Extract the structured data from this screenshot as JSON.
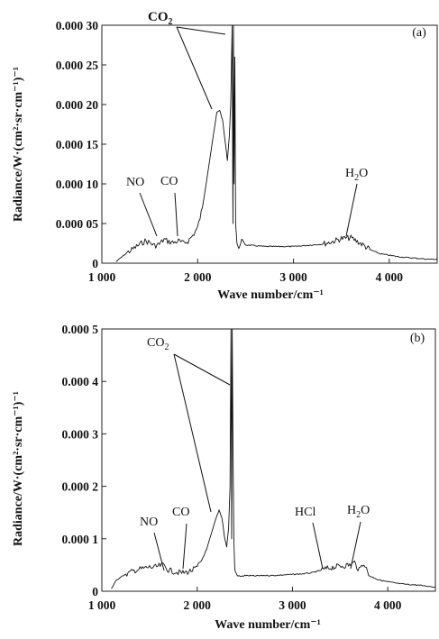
{
  "chart_data": [
    {
      "type": "line",
      "panel_label": "(a)",
      "xlabel": "Wave number/cm⁻¹",
      "ylabel": "Radiance/W·(cm²·sr·cm⁻¹)⁻¹",
      "xlim": [
        1000,
        4500
      ],
      "ylim": [
        0,
        0.0003
      ],
      "x_ticks": [
        1000,
        2000,
        3000,
        4000
      ],
      "x_tick_labels": [
        "1 000",
        "2 000",
        "3 000",
        "4 000"
      ],
      "y_ticks": [
        0,
        5e-05,
        0.0001,
        0.00015,
        0.0002,
        0.00025,
        0.0003
      ],
      "y_tick_labels": [
        "0",
        "0.000 05",
        "0.000 10",
        "0.000 15",
        "0.000 20",
        "0.000 25",
        "0.000 30"
      ],
      "grid": false,
      "series": [
        {
          "x": [
            1150,
            1200,
            1250,
            1300,
            1350,
            1400,
            1450,
            1500,
            1550,
            1600,
            1650,
            1700,
            1750,
            1800,
            1850,
            1900,
            1950,
            2000,
            2050,
            2100,
            2150,
            2200,
            2230,
            2260,
            2290,
            2310,
            2330,
            2345,
            2360,
            2368,
            2374,
            2380,
            2388,
            2396,
            2410,
            2430,
            2460,
            2500,
            2600,
            2700,
            2800,
            2900,
            3000,
            3100,
            3200,
            3300,
            3400,
            3500,
            3600,
            3700,
            3800,
            3900,
            4000,
            4100,
            4200,
            4300,
            4400,
            4500
          ],
          "y": [
            2e-06,
            7e-06,
            1.2e-05,
            1.6e-05,
            2e-05,
            2.4e-05,
            2.8e-05,
            2.6e-05,
            2.2e-05,
            2.4e-05,
            3e-05,
            2.7e-05,
            2.6e-05,
            2.8e-05,
            2.5e-05,
            2.8e-05,
            3.5e-05,
            4.5e-05,
            7e-05,
            0.00011,
            0.00015,
            0.00019,
            0.000193,
            0.00018,
            0.00015,
            0.00013,
            0.00016,
            0.0002,
            0.0003,
            5e-05,
            0.0003,
            0.0001,
            0.00026,
            5e-05,
            2.5e-05,
            1.8e-05,
            3e-05,
            2.3e-05,
            2.2e-05,
            2.1e-05,
            2.1e-05,
            2.1e-05,
            2.1e-05,
            2.2e-05,
            2.3e-05,
            2.4e-05,
            2.7e-05,
            3.1e-05,
            3.2e-05,
            2.5e-05,
            1.7e-05,
            1.2e-05,
            1e-05,
            8e-06,
            7e-06,
            6e-06,
            5e-06,
            5e-06
          ]
        }
      ],
      "annotations": [
        {
          "text": "CO",
          "sub": "2",
          "points_to": [
            [
              2230,
              0.000193
            ],
            [
              2370,
              0.000296
            ]
          ]
        },
        {
          "text": "NO",
          "sub": "",
          "points_to": [
            [
              1620,
              2.8e-05
            ]
          ]
        },
        {
          "text": "CO",
          "sub": "",
          "points_to": [
            [
              1820,
              2.6e-05
            ]
          ]
        },
        {
          "text": "H",
          "sub": "2",
          "tail": "O",
          "points_to": [
            [
              3600,
              3.2e-05
            ]
          ]
        }
      ]
    },
    {
      "type": "line",
      "panel_label": "(b)",
      "xlabel": "Wave number/cm⁻¹",
      "ylabel": "Radiance/W·(cm²·sr·cm⁻¹)⁻¹",
      "xlim": [
        1000,
        4500
      ],
      "ylim": [
        0,
        0.0005
      ],
      "x_ticks": [
        1000,
        2000,
        3000,
        4000
      ],
      "x_tick_labels": [
        "1 000",
        "2 000",
        "3 000",
        "4 000"
      ],
      "y_ticks": [
        0,
        0.0001,
        0.0002,
        0.0003,
        0.0004,
        0.0005
      ],
      "y_tick_labels": [
        "0",
        "0.000 1",
        "0.000 2",
        "0.000 3",
        "0.000 4",
        "0.000 5"
      ],
      "grid": false,
      "series": [
        {
          "x": [
            1100,
            1150,
            1200,
            1250,
            1300,
            1350,
            1400,
            1450,
            1500,
            1550,
            1600,
            1650,
            1700,
            1750,
            1800,
            1850,
            1900,
            1950,
            2000,
            2050,
            2100,
            2150,
            2200,
            2230,
            2260,
            2290,
            2310,
            2330,
            2345,
            2355,
            2362,
            2368,
            2375,
            2385,
            2395,
            2420,
            2460,
            2500,
            2600,
            2700,
            2800,
            2900,
            3000,
            3100,
            3200,
            3300,
            3400,
            3500,
            3600,
            3650,
            3700,
            3750,
            3800,
            3900,
            4000,
            4100,
            4200,
            4300,
            4400,
            4500
          ],
          "y": [
            5e-06,
            2e-05,
            2.8e-05,
            3.2e-05,
            3.6e-05,
            4e-05,
            4.2e-05,
            4.4e-05,
            4.6e-05,
            4.5e-05,
            4.8e-05,
            5e-05,
            4e-05,
            3.8e-05,
            3.6e-05,
            3.5e-05,
            3.7e-05,
            4e-05,
            4.5e-05,
            6e-05,
            8e-05,
            0.00011,
            0.00014,
            0.000155,
            0.00014,
            0.0001,
            8.5e-05,
            0.00012,
            0.0002,
            0.0005,
            0.0001,
            0.0005,
            0.0003,
            0.0001,
            4e-05,
            3e-05,
            2.8e-05,
            3e-05,
            2.9e-05,
            3e-05,
            3e-05,
            3.1e-05,
            3.2e-05,
            3.3e-05,
            3.5e-05,
            4e-05,
            4.5e-05,
            4.8e-05,
            5e-05,
            5.5e-05,
            4e-05,
            5.5e-05,
            3e-05,
            2.2e-05,
            1.8e-05,
            1.5e-05,
            1.3e-05,
            1.2e-05,
            1e-05,
            8e-06
          ]
        }
      ],
      "annotations": [
        {
          "text": "CO",
          "sub": "2",
          "points_to": [
            [
              2230,
              0.000155
            ],
            [
              2355,
              0.00043
            ]
          ]
        },
        {
          "text": "NO",
          "sub": "",
          "points_to": [
            [
              1720,
              4.5e-05
            ]
          ]
        },
        {
          "text": "CO",
          "sub": "",
          "points_to": [
            [
              1920,
              4.5e-05
            ]
          ]
        },
        {
          "text": "HCl",
          "sub": "",
          "points_to": [
            [
              3400,
              4.8e-05
            ]
          ]
        },
        {
          "text": "H",
          "sub": "2",
          "tail": "O",
          "points_to": [
            [
              3650,
              5.5e-05
            ]
          ]
        }
      ]
    }
  ]
}
